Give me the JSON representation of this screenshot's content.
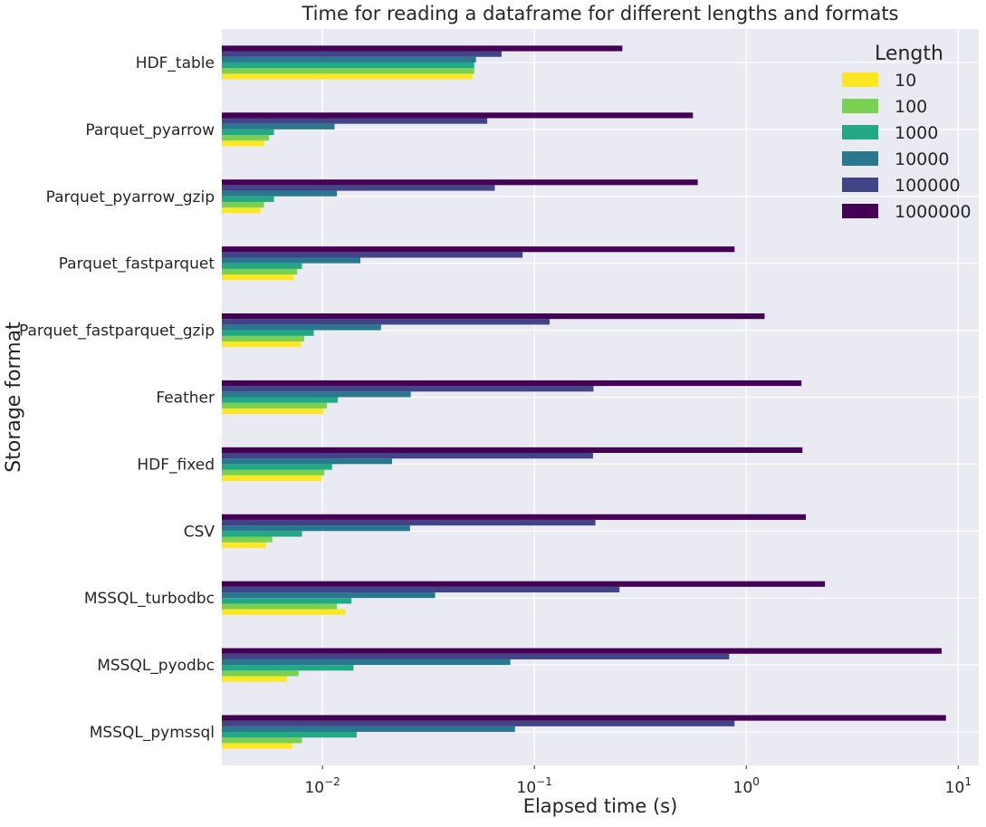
{
  "chart_data": {
    "type": "bar",
    "orientation": "horizontal",
    "title": "Time for reading a dataframe for different lengths and formats",
    "xlabel": "Elapsed time (s)",
    "ylabel": "Storage format",
    "x_scale": "log",
    "xlim": [
      0.00335,
      12.5
    ],
    "x_tick_labels": [
      {
        "value": 0.01,
        "base": "10",
        "exp": "−2"
      },
      {
        "value": 0.1,
        "base": "10",
        "exp": "−1"
      },
      {
        "value": 1,
        "base": "10",
        "exp": "0"
      },
      {
        "value": 10,
        "base": "10",
        "exp": "1"
      }
    ],
    "grid": true,
    "legend": {
      "title": "Length",
      "position": "top-right"
    },
    "categories": [
      "HDF_table",
      "Parquet_pyarrow",
      "Parquet_pyarrow_gzip",
      "Parquet_fastparquet",
      "Parquet_fastparquet_gzip",
      "Feather",
      "HDF_fixed",
      "CSV",
      "MSSQL_turbodbc",
      "MSSQL_pyodbc",
      "MSSQL_pymssql"
    ],
    "series": [
      {
        "name": "10",
        "color": "#fde725",
        "values": [
          0.051,
          0.0053,
          0.0051,
          0.0073,
          0.0079,
          0.0101,
          0.0099,
          0.0054,
          0.0128,
          0.0068,
          0.0072
        ]
      },
      {
        "name": "100",
        "color": "#7ad151",
        "values": [
          0.052,
          0.0056,
          0.0053,
          0.0076,
          0.0082,
          0.0105,
          0.0102,
          0.0058,
          0.0117,
          0.0077,
          0.008
        ]
      },
      {
        "name": "1000",
        "color": "#22a884",
        "values": [
          0.052,
          0.0059,
          0.0059,
          0.008,
          0.0091,
          0.0118,
          0.0111,
          0.008,
          0.0137,
          0.014,
          0.0145
        ]
      },
      {
        "name": "10000",
        "color": "#2a788e",
        "values": [
          0.053,
          0.0114,
          0.0117,
          0.0151,
          0.0189,
          0.0261,
          0.0213,
          0.0259,
          0.034,
          0.077,
          0.081
        ]
      },
      {
        "name": "100000",
        "color": "#414487",
        "values": [
          0.07,
          0.0599,
          0.065,
          0.088,
          0.118,
          0.19,
          0.189,
          0.194,
          0.252,
          0.83,
          0.88
        ]
      },
      {
        "name": "1000000",
        "color": "#440154",
        "values": [
          0.26,
          0.56,
          0.59,
          0.88,
          1.22,
          1.82,
          1.84,
          1.91,
          2.35,
          8.35,
          8.75
        ]
      }
    ]
  }
}
